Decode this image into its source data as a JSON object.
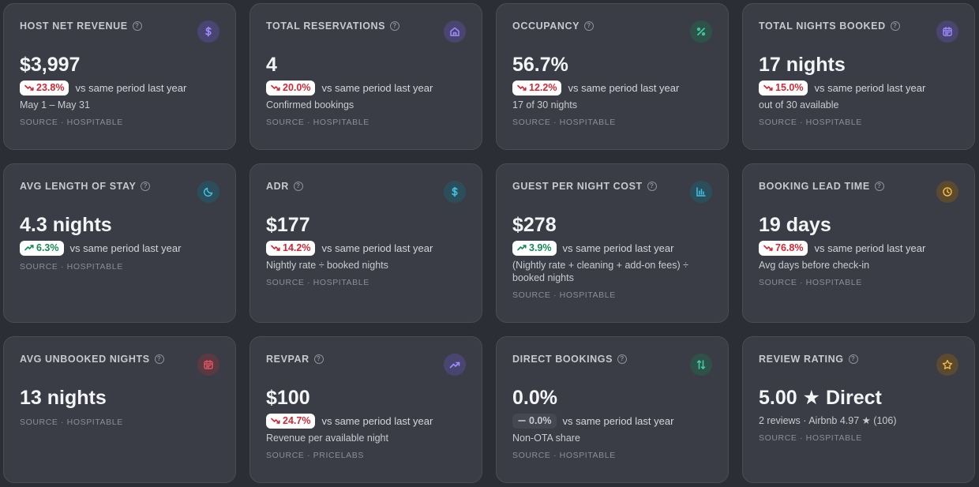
{
  "cards": [
    {
      "title": "HOST NET REVENUE",
      "icon": "dollar-icon",
      "value": "$3,997",
      "delta": "23.8%",
      "trend": "down",
      "vs": "vs same period last year",
      "sub": "May 1 – May 31",
      "source": "SOURCE · HOSPITABLE"
    },
    {
      "title": "TOTAL RESERVATIONS",
      "icon": "home-icon",
      "value": "4",
      "delta": "20.0%",
      "trend": "down",
      "vs": "vs same period last year",
      "sub": "Confirmed bookings",
      "source": "SOURCE · HOSPITABLE"
    },
    {
      "title": "OCCUPANCY",
      "icon": "percent-icon",
      "value": "56.7%",
      "delta": "12.2%",
      "trend": "down",
      "vs": "vs same period last year",
      "sub": "17 of 30 nights",
      "source": "SOURCE · HOSPITABLE"
    },
    {
      "title": "TOTAL NIGHTS BOOKED",
      "icon": "calendar-icon",
      "value": "17 nights",
      "delta": "15.0%",
      "trend": "down",
      "vs": "vs same period last year",
      "sub": "out of 30 available",
      "source": "SOURCE · HOSPITABLE"
    },
    {
      "title": "AVG LENGTH OF STAY",
      "icon": "moon-icon",
      "value": "4.3 nights",
      "delta": "6.3%",
      "trend": "up",
      "vs": "vs same period last year",
      "sub": "",
      "source": "SOURCE · HOSPITABLE"
    },
    {
      "title": "ADR",
      "icon": "dollar-icon",
      "value": "$177",
      "delta": "14.2%",
      "trend": "down",
      "vs": "vs same period last year",
      "sub": "Nightly rate ÷ booked nights",
      "source": "SOURCE · HOSPITABLE"
    },
    {
      "title": "GUEST PER NIGHT COST",
      "icon": "bar-chart-icon",
      "value": "$278",
      "delta": "3.9%",
      "trend": "up",
      "vs": "vs same period last year",
      "sub": "(Nightly rate + cleaning + add-on fees) ÷ booked nights",
      "source": "SOURCE · HOSPITABLE"
    },
    {
      "title": "BOOKING LEAD TIME",
      "icon": "clock-icon",
      "value": "19 days",
      "delta": "76.8%",
      "trend": "down",
      "vs": "vs same period last year",
      "sub": "Avg days before check-in",
      "source": "SOURCE · HOSPITABLE"
    },
    {
      "title": "AVG UNBOOKED NIGHTS",
      "icon": "calendar-icon",
      "value": "13 nights",
      "delta": "",
      "trend": "none",
      "vs": "",
      "sub": "",
      "source": "SOURCE · HOSPITABLE"
    },
    {
      "title": "REVPAR",
      "icon": "trending-up-icon",
      "value": "$100",
      "delta": "24.7%",
      "trend": "down",
      "vs": "vs same period last year",
      "sub": "Revenue per available night",
      "source": "SOURCE · PRICELABS"
    },
    {
      "title": "DIRECT BOOKINGS",
      "icon": "arrows-icon",
      "value": "0.0%",
      "delta": "0.0%",
      "trend": "flat",
      "vs": "vs same period last year",
      "sub": "Non-OTA share",
      "source": "SOURCE · HOSPITABLE"
    },
    {
      "title": "REVIEW RATING",
      "icon": "star-icon",
      "value": "5.00 ★ Direct",
      "delta": "",
      "trend": "none",
      "vs": "",
      "sub": "2 reviews · Airbnb 4.97 ★ (106)",
      "source": "SOURCE · HOSPITABLE"
    }
  ],
  "help_glyph": "?",
  "colors": {
    "dollar-icon-purple": "#8b7cf6",
    "teal": "#2fc4a0",
    "cyan": "#38bdf8",
    "amber": "#f5b73b",
    "red": "#e25563",
    "down": "#d32634",
    "up": "#158a55"
  }
}
